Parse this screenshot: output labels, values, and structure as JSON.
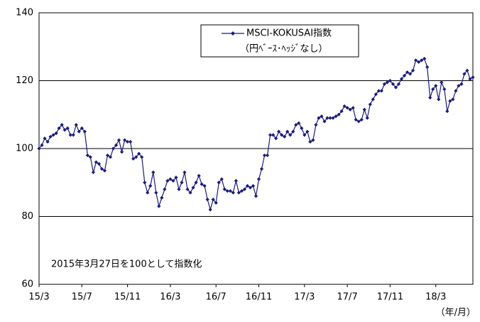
{
  "chart_data": {
    "type": "line",
    "annotation": "2015年3月27日を100として指数化",
    "xlabel": "（年/月）",
    "legend_note": "（円ﾍﾞｰｽ･ﾍｯｼﾞなし）",
    "ylim": [
      60,
      140
    ],
    "yticks": [
      60,
      80,
      100,
      120,
      140
    ],
    "grid": true,
    "categories": [
      "15/3",
      null,
      null,
      null,
      null,
      null,
      null,
      null,
      null,
      null,
      null,
      null,
      null,
      null,
      null,
      "15/7",
      null,
      null,
      null,
      null,
      null,
      null,
      null,
      null,
      null,
      null,
      null,
      null,
      null,
      null,
      null,
      "15/11",
      null,
      null,
      null,
      null,
      null,
      null,
      null,
      null,
      null,
      null,
      null,
      null,
      null,
      null,
      "16/3",
      null,
      null,
      null,
      null,
      null,
      null,
      null,
      null,
      null,
      null,
      null,
      null,
      null,
      null,
      null,
      "16/7",
      null,
      null,
      null,
      null,
      null,
      null,
      null,
      null,
      null,
      null,
      null,
      null,
      null,
      null,
      "16/11",
      null,
      null,
      null,
      null,
      null,
      null,
      null,
      null,
      null,
      null,
      null,
      null,
      null,
      null,
      null,
      "17/3",
      null,
      null,
      null,
      null,
      null,
      null,
      null,
      null,
      null,
      null,
      null,
      null,
      null,
      null,
      "17/7",
      null,
      null,
      null,
      null,
      null,
      null,
      null,
      null,
      null,
      null,
      null,
      null,
      null,
      null,
      "17/11",
      null,
      null,
      null,
      null,
      null,
      null,
      null,
      null,
      null,
      null,
      null,
      null,
      null,
      null,
      null,
      "18/3",
      null,
      null,
      null,
      null,
      null,
      null,
      null,
      null,
      null,
      null,
      null,
      null,
      null
    ],
    "series": [
      {
        "name": "MSCI-KOKUSAI指数",
        "color": "#1a1a80",
        "values": [
          100,
          101,
          103,
          102,
          103.5,
          104,
          104.5,
          106,
          107,
          105.5,
          106,
          104,
          104,
          107,
          105,
          106,
          105,
          98,
          97.5,
          93,
          96,
          95.5,
          94,
          93.5,
          98,
          97.5,
          100,
          101,
          102.5,
          99,
          102.5,
          102,
          102,
          97,
          97.5,
          98.5,
          97.5,
          90,
          87,
          89,
          93,
          87,
          83,
          85.5,
          88,
          90.5,
          91,
          90.5,
          91.5,
          88,
          90,
          93,
          88,
          87,
          88.5,
          90,
          92,
          89.5,
          89,
          85,
          82,
          85,
          84,
          90,
          91,
          88,
          87.5,
          87.5,
          87,
          90.5,
          87,
          87.5,
          88,
          89,
          88.5,
          89,
          86,
          91,
          94,
          98,
          98,
          104,
          104,
          103,
          105,
          104,
          103.5,
          105,
          104,
          105,
          107,
          107.5,
          106,
          104,
          105,
          102,
          102.5,
          107,
          109,
          109.5,
          108,
          109,
          109,
          109,
          109.5,
          110,
          111,
          112.5,
          112,
          111.5,
          112,
          108.5,
          108,
          108.5,
          111.5,
          109,
          113,
          114.5,
          116,
          117,
          117,
          119,
          119.5,
          120,
          119,
          118,
          119,
          120.5,
          121.5,
          122.5,
          122,
          123,
          126,
          125.5,
          126,
          126.5,
          124,
          115,
          117.5,
          118.5,
          114.5,
          119.5,
          117.5,
          111,
          114,
          114.5,
          117,
          118.5,
          119,
          122,
          123,
          120.5,
          121
        ]
      }
    ]
  }
}
